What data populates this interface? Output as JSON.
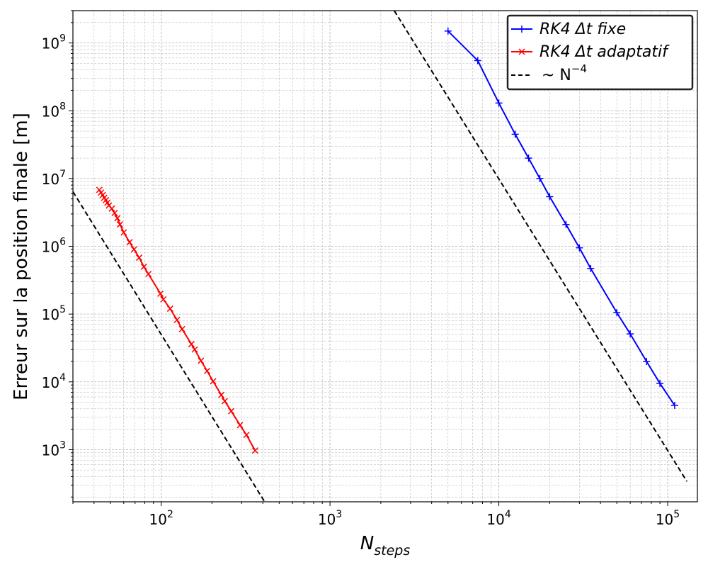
{
  "chart_data": {
    "type": "line",
    "xscale": "log",
    "yscale": "log",
    "xlim": [
      30,
      150000
    ],
    "ylim": [
      170,
      3000000000
    ],
    "grid": true,
    "legend_position": "top-right",
    "xlabel_main": "N",
    "xlabel_sub": "steps",
    "ylabel": "Erreur sur la position finale [m]",
    "x_ticks": [
      {
        "value": 100,
        "base": "10",
        "exp": "2"
      },
      {
        "value": 1000,
        "base": "10",
        "exp": "3"
      },
      {
        "value": 10000,
        "base": "10",
        "exp": "4"
      },
      {
        "value": 100000,
        "base": "10",
        "exp": "5"
      }
    ],
    "y_ticks": [
      {
        "value": 1000,
        "base": "10",
        "exp": "3"
      },
      {
        "value": 10000,
        "base": "10",
        "exp": "4"
      },
      {
        "value": 100000,
        "base": "10",
        "exp": "5"
      },
      {
        "value": 1000000,
        "base": "10",
        "exp": "6"
      },
      {
        "value": 10000000,
        "base": "10",
        "exp": "7"
      },
      {
        "value": 100000000,
        "base": "10",
        "exp": "8"
      },
      {
        "value": 1000000000,
        "base": "10",
        "exp": "9"
      }
    ],
    "series": [
      {
        "name": "RK4 Δt fixe",
        "color": "#0000ff",
        "marker": "plus",
        "dash": false,
        "points": [
          [
            5000,
            1500000000
          ],
          [
            7500,
            550000000
          ],
          [
            10000,
            130000000
          ],
          [
            12500,
            45000000
          ],
          [
            15000,
            20000000
          ],
          [
            17500,
            10000000
          ],
          [
            20000,
            5400000
          ],
          [
            25000,
            2100000
          ],
          [
            30000,
            950000
          ],
          [
            35000,
            470000
          ],
          [
            50000,
            105000
          ],
          [
            60000,
            51000
          ],
          [
            75000,
            20000
          ],
          [
            90000,
            9500
          ],
          [
            110000,
            4500
          ]
        ]
      },
      {
        "name": "RK4 Δt adaptatif",
        "color": "#ff0000",
        "marker": "x",
        "dash": false,
        "points": [
          [
            43,
            6800000
          ],
          [
            44,
            6200000
          ],
          [
            45,
            5700000
          ],
          [
            46,
            5200000
          ],
          [
            47,
            4800000
          ],
          [
            48,
            4400000
          ],
          [
            49,
            4000000
          ],
          [
            51,
            3600000
          ],
          [
            53,
            3100000
          ],
          [
            55,
            2600000
          ],
          [
            57,
            2100000
          ],
          [
            60,
            1600000
          ],
          [
            65,
            1150000
          ],
          [
            69,
            900000
          ],
          [
            74,
            680000
          ],
          [
            79,
            500000
          ],
          [
            84,
            390000
          ],
          [
            99,
            200000
          ],
          [
            103,
            165000
          ],
          [
            113,
            120000
          ],
          [
            124,
            82000
          ],
          [
            133,
            60000
          ],
          [
            151,
            36000
          ],
          [
            158,
            30000
          ],
          [
            172,
            20500
          ],
          [
            187,
            14500
          ],
          [
            203,
            10200
          ],
          [
            227,
            6400
          ],
          [
            238,
            5200
          ],
          [
            260,
            3700
          ],
          [
            293,
            2300
          ],
          [
            320,
            1650
          ],
          [
            360,
            970
          ]
        ]
      },
      {
        "name": "~ N⁻⁴",
        "name_main": "~ N",
        "name_exp": "−4",
        "color": "#000000",
        "marker": "none",
        "dash": true,
        "segments": [
          [
            [
              30,
              6400000
            ],
            [
              410,
              170
            ]
          ],
          [
            [
              2400,
              3000000000
            ],
            [
              130000,
              340
            ]
          ]
        ]
      }
    ]
  }
}
